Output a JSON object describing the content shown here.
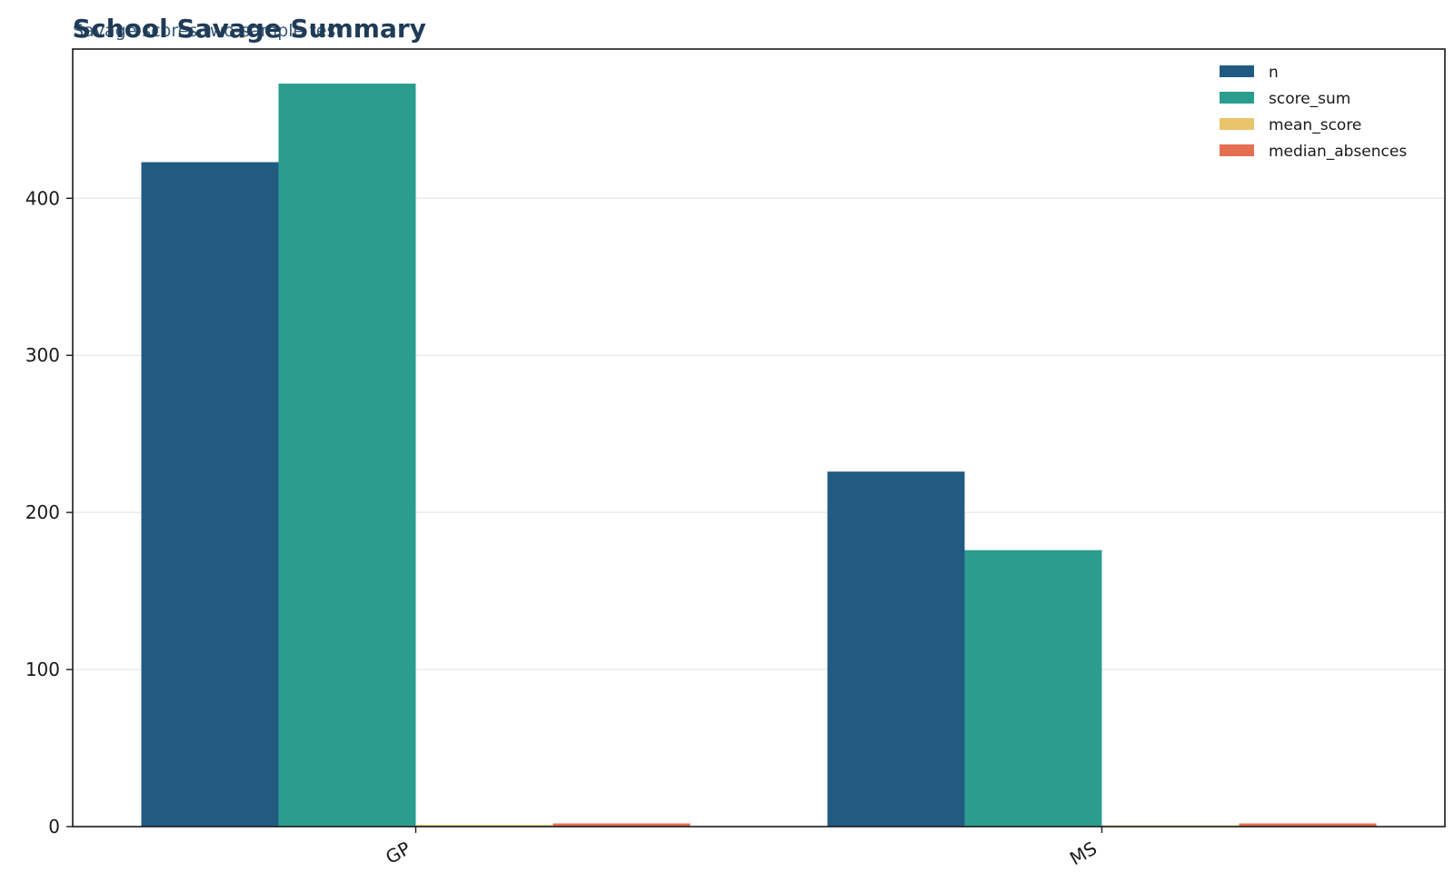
{
  "chart_data": {
    "type": "bar",
    "title": "School Savage Summary",
    "subtitle": "Savage scores two-sample test",
    "xlabel": "",
    "ylabel": "",
    "categories": [
      "GP",
      "MS"
    ],
    "series": [
      {
        "name": "n",
        "values": [
          423,
          226
        ],
        "color": "#215b82"
      },
      {
        "name": "score_sum",
        "values": [
          473,
          176
        ],
        "color": "#2a9d8f"
      },
      {
        "name": "mean_score",
        "values": [
          1.1,
          0.8
        ],
        "color": "#e9c46a"
      },
      {
        "name": "median_absences",
        "values": [
          2,
          2
        ],
        "color": "#e76f51"
      }
    ],
    "ylim": [
      0,
      495
    ],
    "yticks": [
      0,
      100,
      200,
      300,
      400
    ],
    "grid": "horizontal",
    "legend_position": "top-right"
  }
}
